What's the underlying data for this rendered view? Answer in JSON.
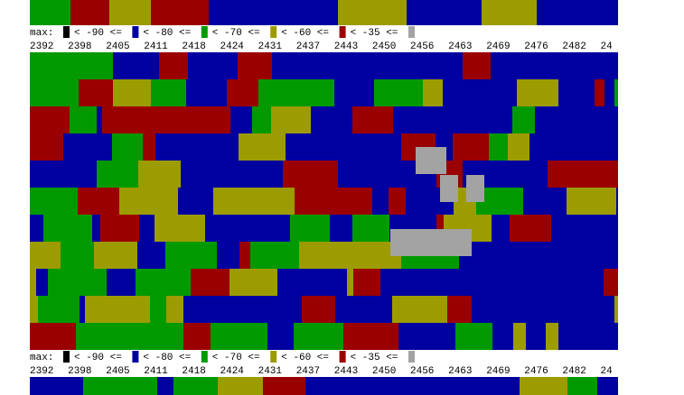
{
  "legend_rows": [
    {
      "prefix": "max:",
      "levels": [
        "< -90 <=",
        "< -80 <=",
        "< -70 <=",
        "< -60 <=",
        "< -35 <="
      ]
    },
    {
      "prefix": "max:",
      "levels": [
        "< -90 <=",
        "< -80 <=",
        "< -70 <=",
        "< -60 <=",
        "< -35 <="
      ]
    }
  ],
  "frequency_rows": [
    [
      "2392",
      "2398",
      "2405",
      "2411",
      "2418",
      "2424",
      "2431",
      "2437",
      "2443",
      "2450",
      "2456",
      "2463",
      "2469",
      "2476",
      "2482",
      "24"
    ],
    [
      "2392",
      "2398",
      "2405",
      "2411",
      "2418",
      "2424",
      "2431",
      "2437",
      "2443",
      "2450",
      "2456",
      "2463",
      "2469",
      "2476",
      "2482",
      "24"
    ]
  ]
}
